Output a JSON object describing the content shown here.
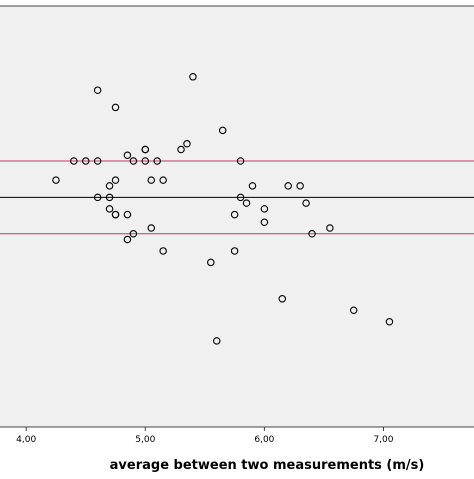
{
  "chart_data": {
    "type": "scatter",
    "title": "",
    "xlabel": "average between two measurements (m/s)",
    "ylabel": "",
    "xlim": [
      3.78,
      7.76
    ],
    "ylim": [
      -1.2,
      1.0
    ],
    "x_ticks": [
      4.0,
      5.0,
      6.0,
      7.0
    ],
    "x_tick_labels": [
      "4,00",
      "5,00",
      "6,00",
      "7,00"
    ],
    "grid": false,
    "legend": "none",
    "reference_lines": [
      {
        "kind": "mean",
        "y": 0.0,
        "color": "#000000"
      },
      {
        "kind": "upper-limit",
        "y": 0.19,
        "color": "#cc3366"
      },
      {
        "kind": "lower-limit",
        "y": -0.19,
        "color": "#cc3366"
      }
    ],
    "marker": {
      "shape": "open-circle",
      "color": "#000000"
    },
    "points": [
      {
        "x": 5.4,
        "y": 0.63
      },
      {
        "x": 4.6,
        "y": 0.56
      },
      {
        "x": 4.75,
        "y": 0.47
      },
      {
        "x": 5.65,
        "y": 0.35
      },
      {
        "x": 5.35,
        "y": 0.28
      },
      {
        "x": 5.0,
        "y": 0.25
      },
      {
        "x": 5.0,
        "y": 0.25
      },
      {
        "x": 5.3,
        "y": 0.25
      },
      {
        "x": 4.85,
        "y": 0.22
      },
      {
        "x": 4.4,
        "y": 0.19
      },
      {
        "x": 4.5,
        "y": 0.19
      },
      {
        "x": 4.6,
        "y": 0.19
      },
      {
        "x": 4.9,
        "y": 0.19
      },
      {
        "x": 5.0,
        "y": 0.19
      },
      {
        "x": 5.1,
        "y": 0.19
      },
      {
        "x": 5.8,
        "y": 0.19
      },
      {
        "x": 4.25,
        "y": 0.09
      },
      {
        "x": 4.75,
        "y": 0.09
      },
      {
        "x": 5.05,
        "y": 0.09
      },
      {
        "x": 5.15,
        "y": 0.09
      },
      {
        "x": 4.7,
        "y": 0.06
      },
      {
        "x": 5.9,
        "y": 0.06
      },
      {
        "x": 6.2,
        "y": 0.06
      },
      {
        "x": 6.3,
        "y": 0.06
      },
      {
        "x": 4.6,
        "y": 0.0
      },
      {
        "x": 4.7,
        "y": 0.0
      },
      {
        "x": 5.8,
        "y": 0.0
      },
      {
        "x": 5.85,
        "y": -0.03
      },
      {
        "x": 6.35,
        "y": -0.03
      },
      {
        "x": 4.7,
        "y": -0.06
      },
      {
        "x": 6.0,
        "y": -0.06
      },
      {
        "x": 4.75,
        "y": -0.09
      },
      {
        "x": 4.75,
        "y": -0.09
      },
      {
        "x": 4.85,
        "y": -0.09
      },
      {
        "x": 5.75,
        "y": -0.09
      },
      {
        "x": 6.0,
        "y": -0.13
      },
      {
        "x": 5.05,
        "y": -0.16
      },
      {
        "x": 6.55,
        "y": -0.16
      },
      {
        "x": 4.9,
        "y": -0.19
      },
      {
        "x": 6.4,
        "y": -0.19
      },
      {
        "x": 4.85,
        "y": -0.22
      },
      {
        "x": 5.15,
        "y": -0.28
      },
      {
        "x": 5.75,
        "y": -0.28
      },
      {
        "x": 5.55,
        "y": -0.34
      },
      {
        "x": 6.15,
        "y": -0.53
      },
      {
        "x": 6.75,
        "y": -0.59
      },
      {
        "x": 7.05,
        "y": -0.65
      },
      {
        "x": 5.6,
        "y": -0.75
      }
    ]
  }
}
